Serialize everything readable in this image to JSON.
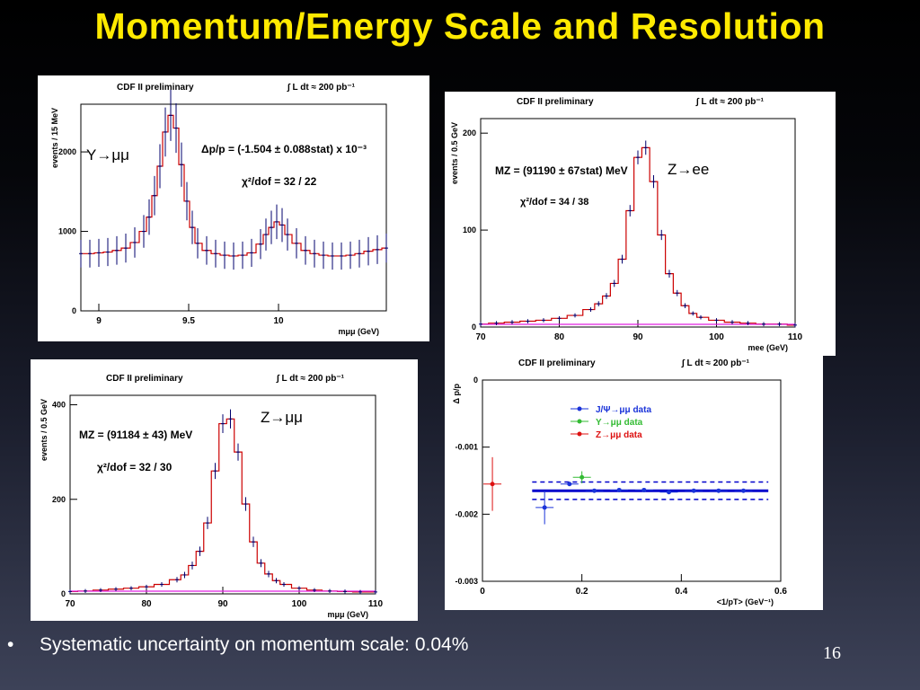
{
  "slide": {
    "title": "Momentum/Energy Scale and Resolution",
    "bullet": "Systematic uncertainty on momentum scale: 0.04%",
    "page_number": "16"
  },
  "colors": {
    "title": "#ffea00",
    "hist": "#cc0000",
    "points": "#00006e",
    "fit": "#e020e0",
    "background_curve": "#0000cc"
  },
  "chart_data": [
    {
      "id": "upsilon",
      "type": "line",
      "header_left": "CDF II preliminary",
      "header_right": "∫ L dt ≈ 200 pb⁻¹",
      "channel": "Υ→μμ",
      "fit_line1": "Δp/p = (-1.504 ± 0.088stat) x 10⁻³",
      "fit_line2": "χ²/dof = 32 / 22",
      "ylabel": "events / 15 MeV",
      "xlabel": "mμμ (GeV)",
      "xlim": [
        8.9,
        10.6
      ],
      "ylim": [
        0,
        2600
      ],
      "xticks": [
        "9",
        "9.5",
        "10"
      ],
      "xtick_values": [
        9.0,
        9.5,
        10.0
      ],
      "yticks": [
        "0",
        "1000",
        "2000"
      ],
      "ytick_values": [
        0,
        1000,
        2000
      ],
      "x": [
        8.9,
        8.95,
        9.0,
        9.05,
        9.1,
        9.15,
        9.2,
        9.25,
        9.28,
        9.31,
        9.34,
        9.37,
        9.4,
        9.43,
        9.46,
        9.49,
        9.52,
        9.55,
        9.6,
        9.65,
        9.7,
        9.75,
        9.8,
        9.85,
        9.9,
        9.93,
        9.96,
        9.99,
        10.02,
        10.05,
        10.1,
        10.15,
        10.2,
        10.25,
        10.3,
        10.35,
        10.4,
        10.45,
        10.5,
        10.55,
        10.6
      ],
      "y": [
        720,
        720,
        730,
        740,
        760,
        790,
        860,
        1000,
        1180,
        1450,
        1820,
        2250,
        2460,
        2300,
        1840,
        1380,
        1050,
        850,
        760,
        720,
        700,
        690,
        700,
        730,
        840,
        960,
        1050,
        1120,
        1080,
        960,
        850,
        760,
        720,
        700,
        690,
        690,
        700,
        720,
        750,
        770,
        790
      ]
    },
    {
      "id": "zee",
      "type": "line",
      "header_left": "CDF II preliminary",
      "header_right": "∫ L dt ≈ 200 pb⁻¹",
      "channel": "Z→ee",
      "fit_line1": "MZ = (91190 ± 67stat) MeV",
      "fit_line2": "χ²/dof = 34 / 38",
      "ylabel": "events / 0.5 GeV",
      "xlabel": "mee (GeV)",
      "xlim": [
        70,
        110
      ],
      "ylim": [
        0,
        215
      ],
      "xticks": [
        "70",
        "80",
        "90",
        "100",
        "110"
      ],
      "xtick_values": [
        70,
        80,
        90,
        100,
        110
      ],
      "yticks": [
        "0",
        "100",
        "200"
      ],
      "ytick_values": [
        0,
        100,
        200
      ],
      "x": [
        70,
        72,
        74,
        76,
        78,
        80,
        82,
        84,
        85,
        86,
        87,
        88,
        89,
        90,
        91,
        92,
        93,
        94,
        95,
        96,
        97,
        98,
        100,
        102,
        104,
        106,
        108,
        110
      ],
      "y": [
        3,
        4,
        5,
        6,
        7,
        9,
        12,
        18,
        24,
        32,
        45,
        70,
        120,
        175,
        185,
        150,
        95,
        55,
        35,
        22,
        14,
        10,
        7,
        5,
        4,
        3,
        3,
        2
      ]
    },
    {
      "id": "zmumu",
      "type": "line",
      "header_left": "CDF II preliminary",
      "header_right": "∫ L dt ≈ 200 pb⁻¹",
      "channel": "Z→μμ",
      "fit_line1": "MZ = (91184 ± 43) MeV",
      "fit_line2": "χ²/dof = 32 / 30",
      "ylabel": "events / 0.5 GeV",
      "xlabel": "mμμ (GeV)",
      "xlim": [
        70,
        110
      ],
      "ylim": [
        0,
        420
      ],
      "xticks": [
        "70",
        "80",
        "90",
        "100",
        "110"
      ],
      "xtick_values": [
        70,
        80,
        90,
        100,
        110
      ],
      "yticks": [
        "0",
        "200",
        "400"
      ],
      "ytick_values": [
        0,
        200,
        400
      ],
      "x": [
        70,
        72,
        74,
        76,
        78,
        80,
        82,
        84,
        85,
        86,
        87,
        88,
        89,
        90,
        91,
        92,
        93,
        94,
        95,
        96,
        97,
        98,
        100,
        102,
        104,
        106,
        108,
        110
      ],
      "y": [
        5,
        6,
        8,
        10,
        12,
        15,
        20,
        30,
        40,
        60,
        90,
        150,
        260,
        360,
        370,
        300,
        190,
        110,
        65,
        42,
        28,
        20,
        12,
        8,
        6,
        5,
        4,
        4
      ]
    },
    {
      "id": "deltap",
      "type": "scatter",
      "header_left": "CDF II preliminary",
      "header_right": "∫ L dt ≈ 200 pb⁻¹",
      "ylabel": "Δ p/p",
      "xlabel": "<1/pT> (GeV⁻¹)",
      "xlim": [
        0,
        0.6
      ],
      "ylim": [
        -0.003,
        0
      ],
      "xticks": [
        "0",
        "0.2",
        "0.4",
        "0.6"
      ],
      "xtick_values": [
        0,
        0.2,
        0.4,
        0.6
      ],
      "yticks": [
        "0",
        "-0.001",
        "-0.002",
        "-0.003"
      ],
      "ytick_values": [
        0,
        -0.001,
        -0.002,
        -0.003
      ],
      "band": {
        "central": -0.00165,
        "upper": -0.00152,
        "lower": -0.00178,
        "x_range": [
          0.1,
          0.575
        ]
      },
      "series": [
        {
          "name": "J/Ψ→μμ data",
          "color": "#1a33d9",
          "x": [
            0.125,
            0.175,
            0.225,
            0.275,
            0.325,
            0.375,
            0.425,
            0.475,
            0.525
          ],
          "y": [
            -0.0019,
            -0.00155,
            -0.00165,
            -0.00164,
            -0.00164,
            -0.00167,
            -0.00165,
            -0.00165,
            -0.00165
          ],
          "yerr": [
            0.00025,
            3e-05,
            2e-05,
            2e-05,
            2e-05,
            2e-05,
            2e-05,
            2e-05,
            2e-05
          ]
        },
        {
          "name": "Υ→μμ data",
          "color": "#33bb33",
          "x": [
            0.2
          ],
          "y": [
            -0.00145
          ],
          "yerr": [
            9e-05
          ]
        },
        {
          "name": "Z→μμ data",
          "color": "#dd1111",
          "x": [
            0.02
          ],
          "y": [
            -0.00155
          ],
          "yerr": [
            0.0004
          ]
        }
      ]
    }
  ]
}
